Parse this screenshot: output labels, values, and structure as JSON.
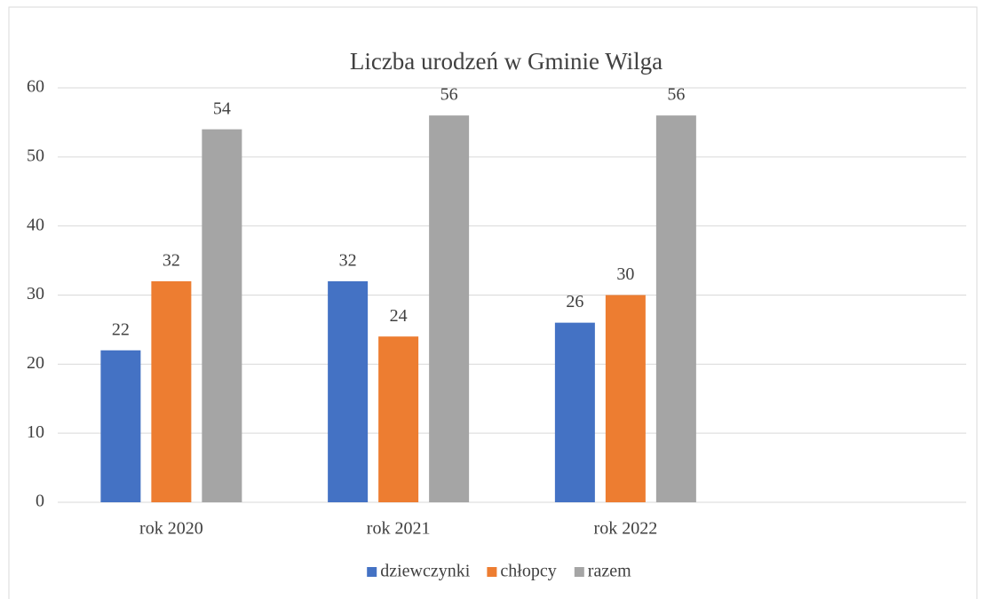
{
  "chart_data": {
    "type": "bar",
    "title": "Liczba urodzeń w Gminie Wilga",
    "categories": [
      "rok 2020",
      "rok 2021",
      "rok 2022",
      null
    ],
    "series": [
      {
        "name": "dziewczynki",
        "color": "#4472c4",
        "values": [
          22,
          32,
          26,
          null
        ]
      },
      {
        "name": "chłopcy",
        "color": "#ed7d31",
        "values": [
          32,
          24,
          30,
          null
        ]
      },
      {
        "name": "razem",
        "color": "#a5a5a5",
        "values": [
          54,
          56,
          56,
          null
        ]
      }
    ],
    "ylim": [
      0,
      60
    ],
    "yticks": [
      0,
      10,
      20,
      30,
      40,
      50,
      60
    ],
    "grid": true,
    "legend": "bottom"
  }
}
